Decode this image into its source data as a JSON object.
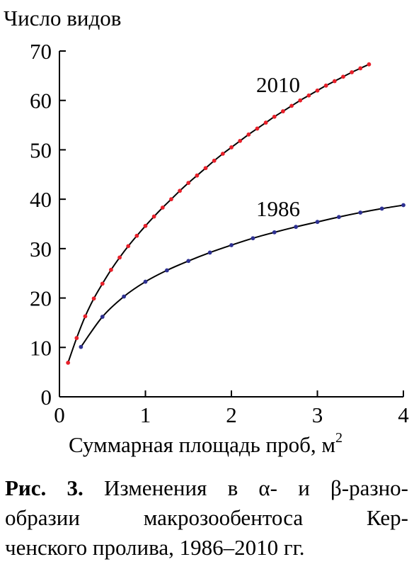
{
  "chart_data": {
    "type": "line",
    "ylabel": "Число видов",
    "xlabel": "Суммарная площадь проб, м",
    "xlabel_sup": "2",
    "xlim": [
      0,
      4
    ],
    "ylim": [
      0,
      70
    ],
    "xticks": [
      0,
      1,
      2,
      3,
      4
    ],
    "yticks": [
      0,
      10,
      20,
      30,
      40,
      50,
      60,
      70
    ],
    "grid": false,
    "legend": "none",
    "series": [
      {
        "name": "2010",
        "color": "#e8202a",
        "x": [
          0.1,
          0.2,
          0.3,
          0.4,
          0.5,
          0.6,
          0.7,
          0.8,
          0.9,
          1.0,
          1.1,
          1.2,
          1.3,
          1.4,
          1.5,
          1.6,
          1.7,
          1.8,
          1.9,
          2.0,
          2.1,
          2.2,
          2.3,
          2.4,
          2.5,
          2.6,
          2.7,
          2.8,
          2.9,
          3.0,
          3.1,
          3.2,
          3.3,
          3.4,
          3.5,
          3.6
        ],
        "y": [
          6.9,
          11.9,
          16.3,
          19.9,
          22.9,
          25.7,
          28.2,
          30.5,
          32.6,
          34.6,
          36.5,
          38.3,
          40.0,
          41.7,
          43.3,
          44.8,
          46.3,
          47.8,
          49.2,
          50.5,
          51.8,
          53.1,
          54.3,
          55.5,
          56.7,
          57.8,
          58.9,
          60.0,
          61.0,
          62.0,
          63.0,
          63.9,
          64.8,
          65.7,
          66.5,
          67.3
        ]
      },
      {
        "name": "1986",
        "color": "#2e3192",
        "x": [
          0.25,
          0.5,
          0.75,
          1.0,
          1.25,
          1.5,
          1.75,
          2.0,
          2.25,
          2.5,
          2.75,
          3.0,
          3.25,
          3.5,
          3.75,
          4.0
        ],
        "y": [
          10.1,
          16.2,
          20.3,
          23.3,
          25.6,
          27.5,
          29.2,
          30.7,
          32.1,
          33.3,
          34.4,
          35.4,
          36.4,
          37.3,
          38.1,
          38.8
        ]
      }
    ]
  },
  "caption": {
    "label": "Рис. 3.",
    "line1": "Изменения в α- и β-разно-",
    "line2": "образии макрозообентоса Кер-",
    "line3": "ченского пролива, 1986–2010 гг."
  }
}
